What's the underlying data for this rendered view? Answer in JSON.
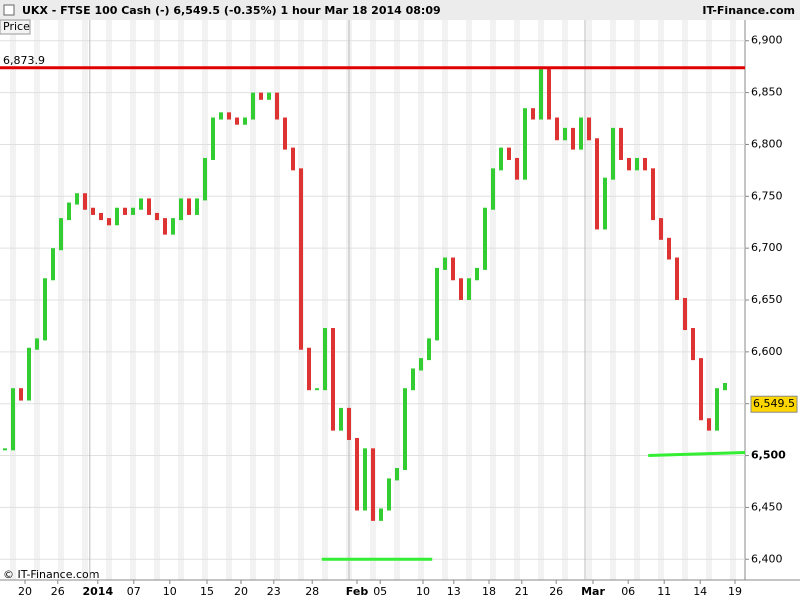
{
  "chart_data": {
    "type": "candlestick",
    "title": "UKX - FTSE 100 Cash (-)    6,549.5 (-0.35%)    1 hour   Mar 18 2014 08:09",
    "brand": "IT-Finance.com",
    "panel_label": "Price",
    "copyright": "© IT-Finance.com",
    "values": [
      6506,
      6564,
      6554,
      6603,
      6612,
      6670,
      6699,
      6728,
      6743,
      6752,
      6738,
      6733,
      6728,
      6723,
      6738,
      6733,
      6738,
      6747,
      6733,
      6728,
      6714,
      6728,
      6747,
      6733,
      6747,
      6786,
      6825,
      6830,
      6825,
      6820,
      6825,
      6849,
      6844,
      6849,
      6825,
      6796,
      6776,
      6603,
      6564,
      6564,
      6622,
      6525,
      6545,
      6516,
      6448,
      6506,
      6438,
      6448,
      6477,
      6487,
      6564,
      6583,
      6593,
      6612,
      6680,
      6690,
      6670,
      6651,
      6670,
      6680,
      6738,
      6776,
      6796,
      6786,
      6767,
      6834,
      6825,
      6873,
      6825,
      6805,
      6815,
      6796,
      6825,
      6805,
      6719,
      6767,
      6815,
      6786,
      6776,
      6786,
      6776,
      6728,
      6709,
      6690,
      6651,
      6622,
      6593,
      6535,
      6525,
      6564,
      6569
    ],
    "up_color": "#33cc33",
    "down_color": "#dd3333",
    "xlim": [
      -0.625,
      92.5
    ],
    "xticks": [
      {
        "value": 2.5,
        "label": "20"
      },
      {
        "value": 6.6,
        "label": "26"
      },
      {
        "value": 11.6,
        "label": "2014"
      },
      {
        "value": 16.1,
        "label": "07"
      },
      {
        "value": 20.6,
        "label": "10"
      },
      {
        "value": 25.25,
        "label": "15"
      },
      {
        "value": 29.5,
        "label": "20"
      },
      {
        "value": 33.6,
        "label": "23"
      },
      {
        "value": 38.4,
        "label": "28"
      },
      {
        "value": 44,
        "label": "Feb"
      },
      {
        "value": 46.9,
        "label": "05"
      },
      {
        "value": 52.25,
        "label": "10"
      },
      {
        "value": 56.1,
        "label": "13"
      },
      {
        "value": 60.5,
        "label": "18"
      },
      {
        "value": 64.6,
        "label": "21"
      },
      {
        "value": 68.9,
        "label": "26"
      },
      {
        "value": 73.5,
        "label": "Mar"
      },
      {
        "value": 77.9,
        "label": "06"
      },
      {
        "value": 82.4,
        "label": "11"
      },
      {
        "value": 86.9,
        "label": "14"
      },
      {
        "value": 91.25,
        "label": "19"
      }
    ],
    "ylim": [
      6380,
      6920
    ],
    "yticks": [
      {
        "value": 6400,
        "label": "6,400"
      },
      {
        "value": 6450,
        "label": "6,450"
      },
      {
        "value": 6500,
        "label": "6,500"
      },
      {
        "value": 6550,
        "label": "6,550"
      },
      {
        "value": 6600,
        "label": "6,600"
      },
      {
        "value": 6650,
        "label": "6,650"
      },
      {
        "value": 6700,
        "label": "6,700"
      },
      {
        "value": 6750,
        "label": "6,750"
      },
      {
        "value": 6800,
        "label": "6,800"
      },
      {
        "value": 6850,
        "label": "6,850"
      },
      {
        "value": 6900,
        "label": "6,900"
      }
    ],
    "last_price": {
      "value": 6549.5,
      "label": "6,549.5"
    },
    "resistance": {
      "value": 6873.9,
      "label": "6,873.9",
      "color": "#e00000"
    },
    "supports": [
      {
        "x": [
          39.6,
          53.4
        ],
        "y": [
          6400,
          6400
        ],
        "color": "#33ee33"
      },
      {
        "x": [
          80.4,
          92.5
        ],
        "y": [
          6500,
          6503
        ],
        "color": "#33ee33"
      }
    ]
  }
}
